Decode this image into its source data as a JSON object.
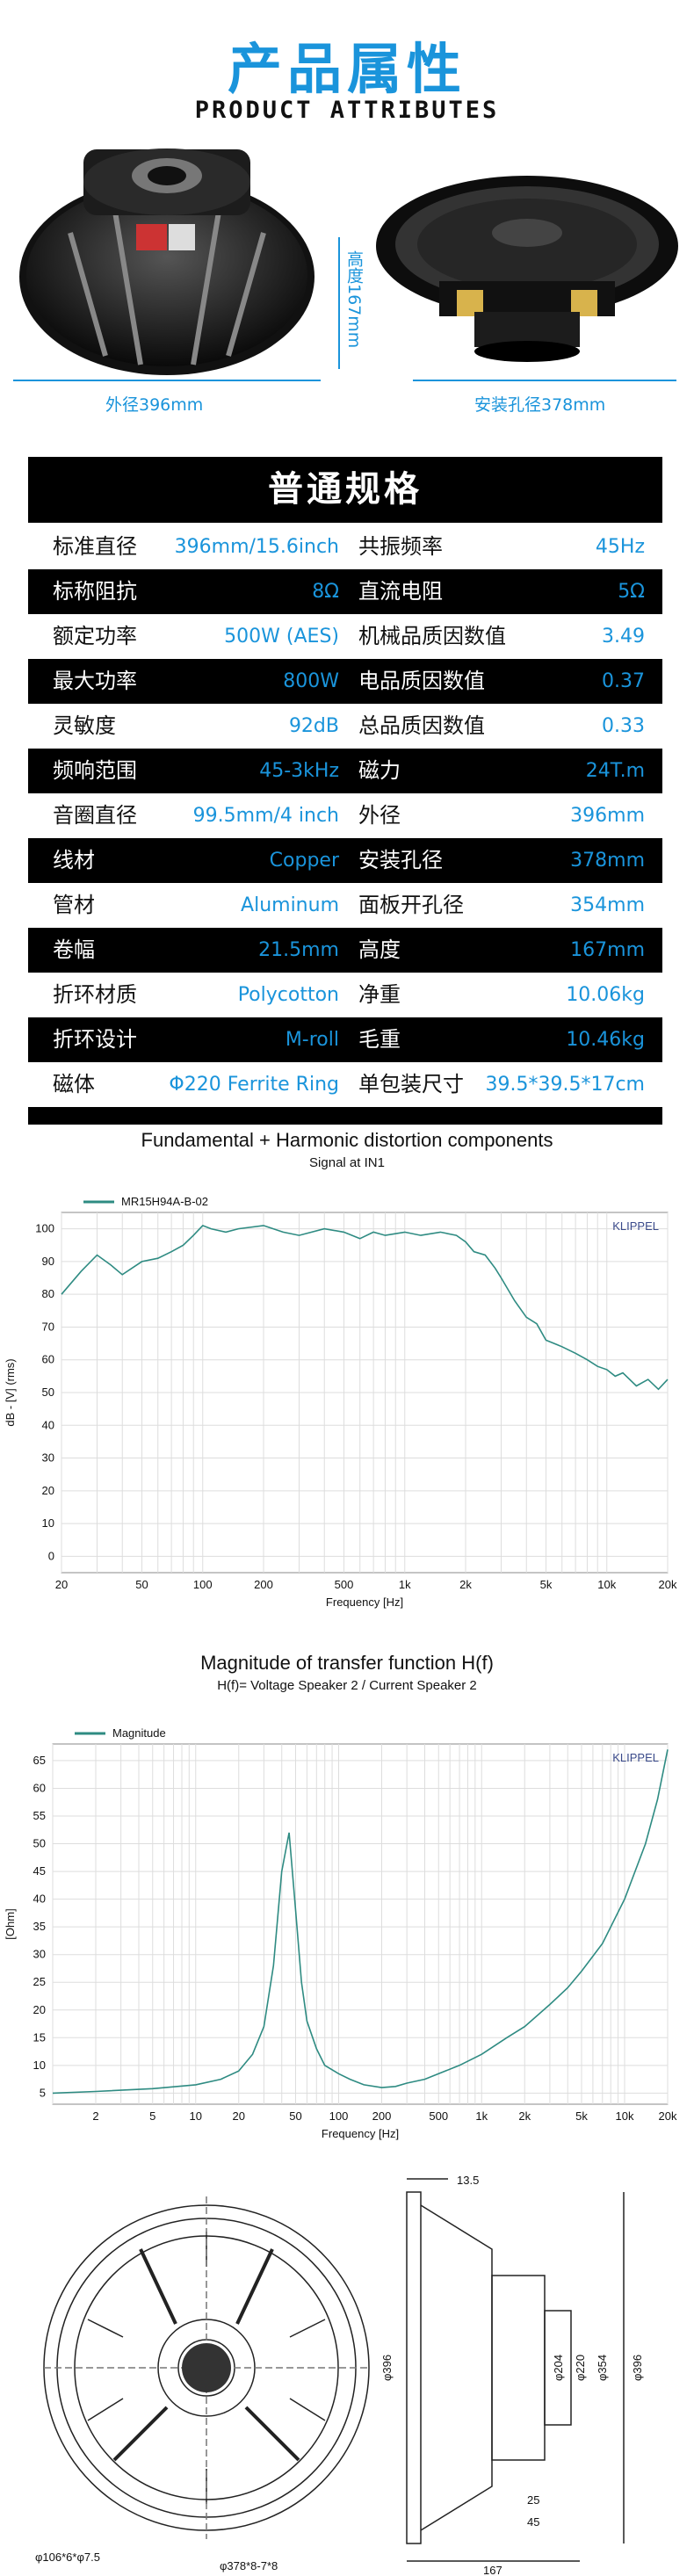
{
  "header": {
    "title_zh": "产品属性",
    "title_en": "PRODUCT ATTRIBUTES"
  },
  "photos": {
    "height_label": "高度167mm",
    "outer_label": "外径396mm",
    "mount_label": "安装孔径378mm"
  },
  "specs": {
    "title": "普通规格",
    "rows": [
      {
        "l1": "标准直径",
        "v1": "396mm/15.6inch",
        "l2": "共振频率",
        "v2": "45Hz"
      },
      {
        "l1": "标称阻抗",
        "v1": "8Ω",
        "l2": "直流电阻",
        "v2": "5Ω"
      },
      {
        "l1": "额定功率",
        "v1": "500W   (AES)",
        "l2": "机械品质因数值",
        "v2": "3.49"
      },
      {
        "l1": "最大功率",
        "v1": "800W",
        "l2": "电品质因数值",
        "v2": "0.37"
      },
      {
        "l1": "灵敏度",
        "v1": "92dB",
        "l2": "总品质因数值",
        "v2": "0.33"
      },
      {
        "l1": "频响范围",
        "v1": "45-3kHz",
        "l2": "磁力",
        "v2": "24T.m"
      },
      {
        "l1": "音圈直径",
        "v1": "99.5mm/4 inch",
        "l2": "外径",
        "v2": "396mm"
      },
      {
        "l1": "线材",
        "v1": "Copper",
        "l2": "安装孔径",
        "v2": "378mm"
      },
      {
        "l1": "管材",
        "v1": "Aluminum",
        "l2": "面板开孔径",
        "v2": "354mm"
      },
      {
        "l1": "卷幅",
        "v1": "21.5mm",
        "l2": "高度",
        "v2": "167mm"
      },
      {
        "l1": "折环材质",
        "v1": "Polycotton",
        "l2": "净重",
        "v2": "10.06kg"
      },
      {
        "l1": "折环设计",
        "v1": "M-roll",
        "l2": "毛重",
        "v2": "10.46kg"
      },
      {
        "l1": "磁体",
        "v1": "Φ220  Ferrite Ring",
        "l2": "单包装尺寸",
        "v2": "39.5*39.5*17cm"
      }
    ]
  },
  "chart_data": [
    {
      "type": "line",
      "title": "Fundamental + Harmonic distortion components",
      "subtitle": "Signal at IN1",
      "xlabel": "Frequency [Hz]",
      "ylabel": "dB - [V] (rms)",
      "xscale": "log",
      "xlim": [
        20,
        20000
      ],
      "ylim": [
        -5,
        105
      ],
      "xticks": [
        "20",
        "50",
        "100",
        "200",
        "500",
        "1k",
        "2k",
        "5k",
        "10k",
        "20k"
      ],
      "yticks": [
        "100",
        "90",
        "80",
        "70",
        "60",
        "50",
        "40",
        "30",
        "20",
        "10",
        "0"
      ],
      "watermark": "KLIPPEL",
      "grid": true,
      "legend": "top-left",
      "series": [
        {
          "name": "MR15H94A-B-02",
          "color": "#2e8b82",
          "x": [
            20,
            25,
            30,
            35,
            40,
            50,
            60,
            70,
            80,
            90,
            100,
            110,
            130,
            150,
            200,
            250,
            300,
            400,
            500,
            600,
            700,
            800,
            1000,
            1200,
            1500,
            1800,
            2000,
            2200,
            2500,
            2800,
            3000,
            3500,
            4000,
            4500,
            5000,
            6000,
            7000,
            8000,
            9000,
            10000,
            11000,
            12000,
            14000,
            16000,
            18000,
            20000
          ],
          "y": [
            80,
            87,
            92,
            89,
            86,
            90,
            91,
            93,
            95,
            98,
            101,
            100,
            99,
            100,
            101,
            99,
            98,
            100,
            99,
            97,
            99,
            98,
            99,
            98,
            99,
            98,
            96,
            93,
            92,
            88,
            85,
            78,
            73,
            71,
            66,
            64,
            62,
            60,
            58,
            57,
            55,
            56,
            52,
            54,
            51,
            54
          ]
        }
      ]
    },
    {
      "type": "line",
      "title": "Magnitude of transfer function H(f)",
      "subtitle": "H(f)= Voltage Speaker 2 / Current Speaker 2",
      "xlabel": "Frequency [Hz]",
      "ylabel": "[Ohm]",
      "xscale": "log",
      "xlim": [
        1,
        20000
      ],
      "ylim": [
        3,
        68
      ],
      "xticks": [
        "2",
        "5",
        "10",
        "20",
        "50",
        "100",
        "200",
        "500",
        "1k",
        "2k",
        "5k",
        "10k",
        "20k"
      ],
      "yticks": [
        "65",
        "60",
        "55",
        "50",
        "45",
        "40",
        "35",
        "30",
        "25",
        "20",
        "15",
        "10",
        "5"
      ],
      "watermark": "KLIPPEL",
      "grid": true,
      "legend": "top-left",
      "series": [
        {
          "name": "Magnitude",
          "color": "#2e8b82",
          "x": [
            1,
            2,
            5,
            10,
            15,
            20,
            25,
            30,
            35,
            40,
            45,
            50,
            55,
            60,
            70,
            80,
            100,
            120,
            150,
            200,
            250,
            300,
            400,
            500,
            700,
            1000,
            1500,
            2000,
            3000,
            4000,
            5000,
            7000,
            10000,
            14000,
            17000,
            20000
          ],
          "y": [
            5,
            5.3,
            5.8,
            6.5,
            7.5,
            9,
            12,
            17,
            28,
            45,
            52,
            38,
            25,
            18,
            13,
            10,
            8.5,
            7.5,
            6.5,
            6,
            6.2,
            6.8,
            7.5,
            8.5,
            10,
            12,
            15,
            17,
            21,
            24,
            27,
            32,
            40,
            50,
            58,
            67
          ]
        }
      ]
    }
  ],
  "drawing": {
    "d1": "13.5",
    "d2": "φ396",
    "d3": "φ396",
    "d4": "φ204",
    "d5": "φ220",
    "d6": "φ354",
    "d7": "25",
    "d8": "45",
    "d9": "167",
    "d10": "φ106*6*φ7.5",
    "d11": "φ378*8-7*8"
  }
}
